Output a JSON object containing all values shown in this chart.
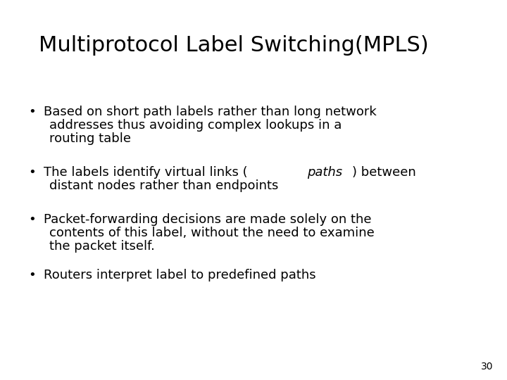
{
  "title": "Multiprotocol Label Switching(MPLS)",
  "background_color": "#ffffff",
  "title_color": "#000000",
  "title_fontsize": 22,
  "bullet_fontsize": 13,
  "page_number": "30",
  "page_number_fontsize": 10,
  "bullet1_line1": "Based on short path labels rather than long network",
  "bullet1_line2": "addresses thus avoiding complex lookups in a",
  "bullet1_line3": "routing table",
  "bullet2_pre": "The labels identify virtual links (",
  "bullet2_italic": "paths",
  "bullet2_post": ") between",
  "bullet2_line2": "distant nodes rather than endpoints",
  "bullet3_line1": "Packet-forwarding decisions are made solely on the",
  "bullet3_line2": "contents of this label, without the need to examine",
  "bullet3_line3": "the packet itself.",
  "bullet4_line1": "Routers interpret label to predefined paths"
}
